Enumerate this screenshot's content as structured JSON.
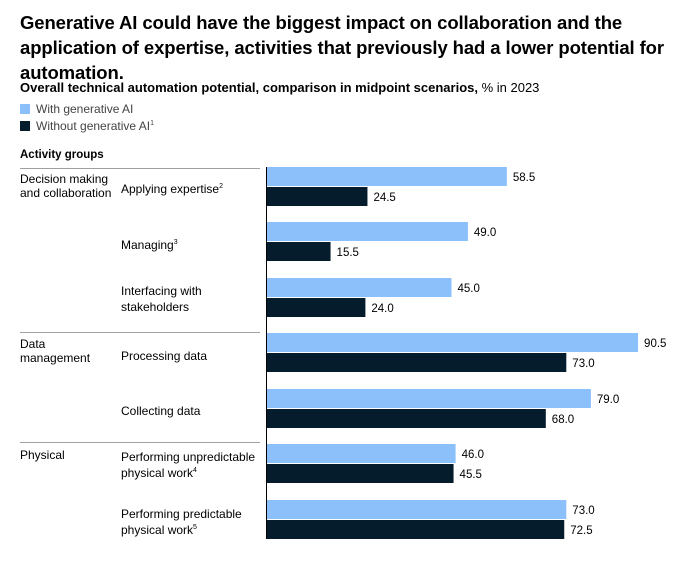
{
  "title": "Generative AI could have the biggest impact on collaboration and the application of expertise, activities that previously had a lower potential for automation.",
  "subtitle": {
    "bold": "Overall technical automation potential, comparison in midpoint scenarios,",
    "rest": " % in 2023"
  },
  "legend": [
    {
      "label": "With generative AI",
      "sup": "",
      "color": "#8cc0fb"
    },
    {
      "label": "Without generative AI",
      "sup": "1",
      "color": "#051c2c"
    }
  ],
  "groups_header": "Activity groups",
  "groups": [
    {
      "label": "Decision making and collaboration"
    },
    {
      "label": "Data management"
    },
    {
      "label": "Physical"
    }
  ],
  "categories": [
    {
      "label": "Applying expertise",
      "sup": "2"
    },
    {
      "label": "Managing",
      "sup": "3"
    },
    {
      "label": "Interfacing with stakeholders",
      "sup": ""
    },
    {
      "label": "Processing data",
      "sup": ""
    },
    {
      "label": "Collecting data",
      "sup": ""
    },
    {
      "label": "Performing unpredictable physical work",
      "sup": "4"
    },
    {
      "label": "Performing predictable physical work",
      "sup": "5"
    }
  ],
  "chart_data": {
    "type": "bar",
    "orientation": "horizontal",
    "categories": [
      "Applying expertise",
      "Managing",
      "Interfacing with stakeholders",
      "Processing data",
      "Collecting data",
      "Performing unpredictable physical work",
      "Performing predictable physical work"
    ],
    "series": [
      {
        "name": "With generative AI",
        "color": "#8cc0fb",
        "values": [
          58.5,
          49.0,
          45.0,
          90.5,
          79.0,
          46.0,
          73.0
        ],
        "labels": [
          "58.5",
          "49.0",
          "45.0",
          "90.5",
          "79.0",
          "46.0",
          "73.0"
        ]
      },
      {
        "name": "Without generative AI",
        "color": "#051c2c",
        "values": [
          24.5,
          15.5,
          24.0,
          73.0,
          68.0,
          45.5,
          72.5
        ],
        "labels": [
          "24.5",
          "15.5",
          "24.0",
          "73.0",
          "68.0",
          "45.5",
          "72.5"
        ]
      }
    ],
    "xlim": [
      0,
      100
    ],
    "grid": false,
    "legend_position": "top-left"
  }
}
